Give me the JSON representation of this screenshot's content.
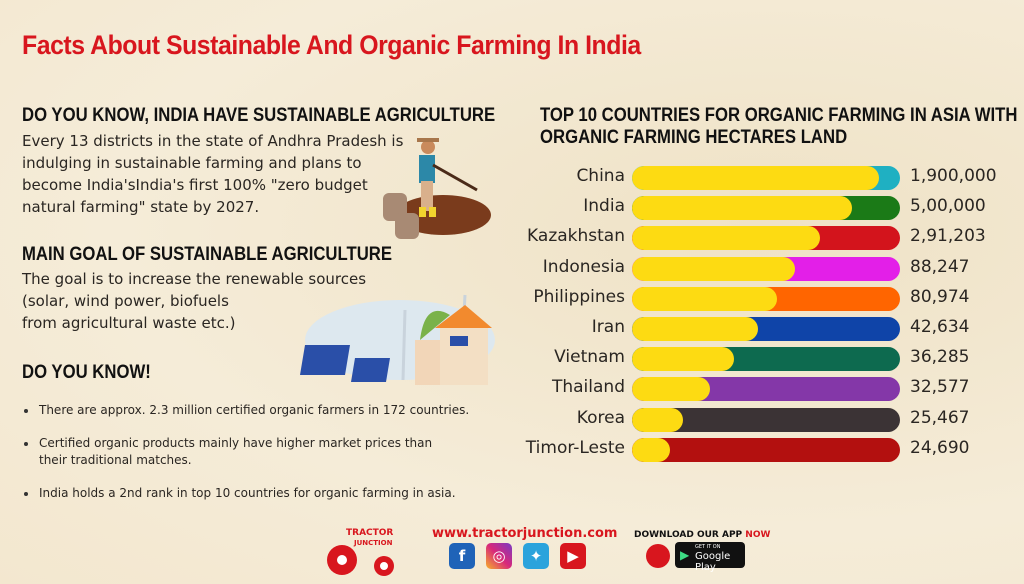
{
  "title": "Facts About Sustainable And Organic Farming In India",
  "section1": {
    "heading": "DO YOU KNOW, INDIA HAVE SUSTAINABLE AGRICULTURE",
    "lines": [
      "Every 13 districts in the state of Andhra Pradesh is",
      "indulging in sustainable farming and plans to",
      "become India'sIndia's first 100% \"zero budget",
      "natural farming\" state by 2027."
    ]
  },
  "section2": {
    "heading": "MAIN GOAL OF SUSTAINABLE AGRICULTURE",
    "lines": [
      "The goal is to increase the renewable sources",
      "(solar, wind power, biofuels",
      "from agricultural waste etc.)"
    ]
  },
  "section3": {
    "heading": "DO YOU KNOW!",
    "bullets": [
      "There are approx. 2.3 million certified organic farmers in 172 countries.",
      "Certified organic products mainly have higher market prices than",
      "their traditional matches.",
      "India holds a 2nd rank in top 10 countries for organic farming in asia."
    ]
  },
  "chart_data": {
    "type": "bar",
    "title": "TOP 10 COUNTRIES FOR ORGANIC FARMING IN ASIA WITH ORGANIC FARMING HECTARES LAND",
    "title_lines": [
      "TOP 10 COUNTRIES FOR ORGANIC FARMING IN ASIA WITH",
      "ORGANIC FARMING HECTARES LAND"
    ],
    "categories": [
      "China",
      "India",
      "Kazakhstan",
      "Indonesia",
      "Philippines",
      "Iran",
      "Vietnam",
      "Thailand",
      "Korea",
      "Timor-Leste"
    ],
    "value_labels": [
      "1,900,000",
      "5,00,000",
      "2,91,203",
      "88,247",
      "80,974",
      "42,634",
      "36,285",
      "32,577",
      "25,467",
      "24,690"
    ],
    "values": [
      1900000,
      500000,
      291203,
      88247,
      80974,
      42634,
      36285,
      32577,
      25467,
      24690
    ],
    "fill_fraction": [
      0.92,
      0.82,
      0.7,
      0.61,
      0.54,
      0.47,
      0.38,
      0.29,
      0.19,
      0.14
    ],
    "fill_color": "#fddb12",
    "track_colors": [
      "#1fb0c2",
      "#1b7a17",
      "#d3141c",
      "#e31fe8",
      "#ff6500",
      "#0f44a8",
      "#0d6a4f",
      "#8437a8",
      "#3b3335",
      "#b3100f"
    ]
  },
  "footer": {
    "logo_text": [
      "TRACTOR",
      "JUNCTION"
    ],
    "website": "www.tractorjunction.com",
    "social": [
      "facebook",
      "instagram",
      "twitter",
      "youtube"
    ],
    "download_label": "DOWNLOAD OUR APP",
    "download_now": "NOW",
    "store_small": "GET IT ON",
    "store": "Google Play"
  },
  "colors": {
    "title": "#d8161e",
    "background": "#f4ead4"
  }
}
